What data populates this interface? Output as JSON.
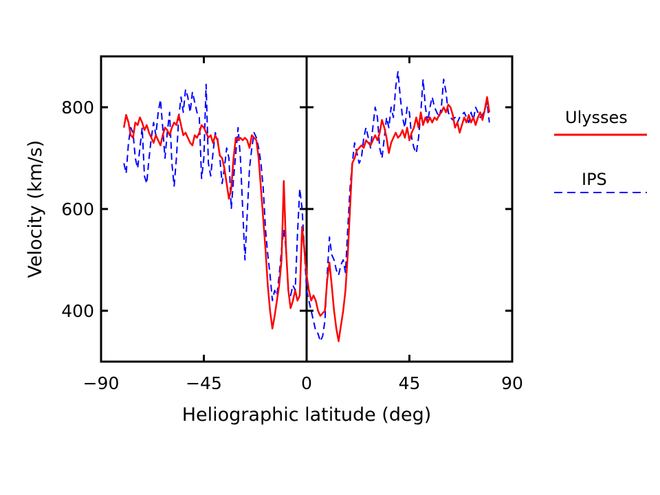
{
  "chart_data": {
    "type": "line",
    "xlabel": "Heliographic latitude (deg)",
    "ylabel": "Velocity (km/s)",
    "xlim": [
      -90,
      90
    ],
    "ylim": [
      300,
      900
    ],
    "x_ticks": [
      -90,
      -45,
      0,
      45,
      90
    ],
    "x_tick_labels": [
      "−90",
      "−45",
      "0",
      "45",
      "90"
    ],
    "y_ticks": [
      400,
      600,
      800
    ],
    "y_tick_labels": [
      "400",
      "600",
      "800"
    ],
    "grid": false,
    "legend_placement": "right, outside",
    "series": [
      {
        "name": "Ulysses",
        "color": "#ff0000",
        "style": "solid",
        "points": [
          [
            -80,
            760
          ],
          [
            -79,
            785
          ],
          [
            -78,
            770
          ],
          [
            -77,
            745
          ],
          [
            -76,
            740
          ],
          [
            -75,
            770
          ],
          [
            -74,
            765
          ],
          [
            -73,
            780
          ],
          [
            -72,
            770
          ],
          [
            -71,
            755
          ],
          [
            -70,
            765
          ],
          [
            -69,
            750
          ],
          [
            -68,
            740
          ],
          [
            -67,
            730
          ],
          [
            -66,
            745
          ],
          [
            -65,
            735
          ],
          [
            -64,
            725
          ],
          [
            -63,
            745
          ],
          [
            -62,
            760
          ],
          [
            -61,
            755
          ],
          [
            -60,
            745
          ],
          [
            -59,
            760
          ],
          [
            -58,
            770
          ],
          [
            -57,
            765
          ],
          [
            -56,
            785
          ],
          [
            -55,
            765
          ],
          [
            -54,
            745
          ],
          [
            -53,
            750
          ],
          [
            -52,
            740
          ],
          [
            -51,
            730
          ],
          [
            -50,
            725
          ],
          [
            -49,
            745
          ],
          [
            -48,
            740
          ],
          [
            -47,
            750
          ],
          [
            -46,
            765
          ],
          [
            -45,
            760
          ],
          [
            -44,
            750
          ],
          [
            -43,
            740
          ],
          [
            -42,
            745
          ],
          [
            -41,
            730
          ],
          [
            -40,
            745
          ],
          [
            -39,
            735
          ],
          [
            -38,
            705
          ],
          [
            -37,
            700
          ],
          [
            -36,
            680
          ],
          [
            -35,
            650
          ],
          [
            -34,
            620
          ],
          [
            -33,
            640
          ],
          [
            -32,
            700
          ],
          [
            -31,
            740
          ],
          [
            -30,
            735
          ],
          [
            -29,
            740
          ],
          [
            -28,
            735
          ],
          [
            -27,
            740
          ],
          [
            -26,
            735
          ],
          [
            -25,
            720
          ],
          [
            -24,
            745
          ],
          [
            -23,
            740
          ],
          [
            -22,
            735
          ],
          [
            -21,
            700
          ],
          [
            -20,
            640
          ],
          [
            -19,
            580
          ],
          [
            -18,
            520
          ],
          [
            -17,
            450
          ],
          [
            -16,
            400
          ],
          [
            -15,
            365
          ],
          [
            -14,
            390
          ],
          [
            -13,
            420
          ],
          [
            -12,
            450
          ],
          [
            -11,
            500
          ],
          [
            -10,
            655
          ],
          [
            -9,
            520
          ],
          [
            -8,
            440
          ],
          [
            -7,
            405
          ],
          [
            -6,
            420
          ],
          [
            -5,
            440
          ],
          [
            -4,
            420
          ],
          [
            -3,
            430
          ],
          [
            -2,
            565
          ],
          [
            -1,
            520
          ],
          [
            0,
            470
          ],
          [
            1,
            440
          ],
          [
            2,
            420
          ],
          [
            3,
            430
          ],
          [
            4,
            420
          ],
          [
            5,
            400
          ],
          [
            6,
            390
          ],
          [
            7,
            395
          ],
          [
            8,
            400
          ],
          [
            9,
            460
          ],
          [
            10,
            495
          ],
          [
            11,
            450
          ],
          [
            12,
            400
          ],
          [
            13,
            365
          ],
          [
            14,
            340
          ],
          [
            15,
            370
          ],
          [
            16,
            400
          ],
          [
            17,
            440
          ],
          [
            18,
            510
          ],
          [
            19,
            600
          ],
          [
            20,
            690
          ],
          [
            21,
            700
          ],
          [
            22,
            715
          ],
          [
            23,
            720
          ],
          [
            24,
            725
          ],
          [
            25,
            720
          ],
          [
            26,
            735
          ],
          [
            27,
            730
          ],
          [
            28,
            725
          ],
          [
            29,
            735
          ],
          [
            30,
            745
          ],
          [
            31,
            735
          ],
          [
            32,
            750
          ],
          [
            33,
            775
          ],
          [
            34,
            760
          ],
          [
            35,
            740
          ],
          [
            36,
            710
          ],
          [
            37,
            730
          ],
          [
            38,
            740
          ],
          [
            39,
            750
          ],
          [
            40,
            740
          ],
          [
            41,
            745
          ],
          [
            42,
            755
          ],
          [
            43,
            740
          ],
          [
            44,
            760
          ],
          [
            45,
            735
          ],
          [
            46,
            750
          ],
          [
            47,
            760
          ],
          [
            48,
            780
          ],
          [
            49,
            760
          ],
          [
            50,
            790
          ],
          [
            51,
            765
          ],
          [
            52,
            780
          ],
          [
            53,
            770
          ],
          [
            54,
            780
          ],
          [
            55,
            770
          ],
          [
            56,
            780
          ],
          [
            57,
            775
          ],
          [
            58,
            785
          ],
          [
            59,
            790
          ],
          [
            60,
            800
          ],
          [
            61,
            790
          ],
          [
            62,
            805
          ],
          [
            63,
            800
          ],
          [
            64,
            785
          ],
          [
            65,
            760
          ],
          [
            66,
            770
          ],
          [
            67,
            750
          ],
          [
            68,
            765
          ],
          [
            69,
            780
          ],
          [
            70,
            770
          ],
          [
            71,
            785
          ],
          [
            72,
            770
          ],
          [
            73,
            780
          ],
          [
            74,
            765
          ],
          [
            75,
            780
          ],
          [
            76,
            790
          ],
          [
            77,
            775
          ],
          [
            78,
            795
          ],
          [
            79,
            820
          ],
          [
            80,
            790
          ]
        ]
      },
      {
        "name": "IPS",
        "color": "#0000ff",
        "style": "dashed",
        "points": [
          [
            -80,
            690
          ],
          [
            -79,
            670
          ],
          [
            -78,
            730
          ],
          [
            -77,
            760
          ],
          [
            -76,
            750
          ],
          [
            -75,
            700
          ],
          [
            -74,
            680
          ],
          [
            -73,
            720
          ],
          [
            -72,
            760
          ],
          [
            -71,
            665
          ],
          [
            -70,
            650
          ],
          [
            -69,
            700
          ],
          [
            -68,
            740
          ],
          [
            -67,
            770
          ],
          [
            -66,
            745
          ],
          [
            -65,
            790
          ],
          [
            -64,
            815
          ],
          [
            -63,
            760
          ],
          [
            -62,
            700
          ],
          [
            -61,
            750
          ],
          [
            -60,
            790
          ],
          [
            -59,
            690
          ],
          [
            -58,
            645
          ],
          [
            -57,
            700
          ],
          [
            -56,
            780
          ],
          [
            -55,
            820
          ],
          [
            -54,
            790
          ],
          [
            -53,
            835
          ],
          [
            -52,
            820
          ],
          [
            -51,
            790
          ],
          [
            -50,
            830
          ],
          [
            -49,
            810
          ],
          [
            -48,
            790
          ],
          [
            -47,
            780
          ],
          [
            -46,
            660
          ],
          [
            -45,
            700
          ],
          [
            -44,
            845
          ],
          [
            -43,
            690
          ],
          [
            -42,
            665
          ],
          [
            -41,
            710
          ],
          [
            -40,
            750
          ],
          [
            -39,
            740
          ],
          [
            -38,
            700
          ],
          [
            -37,
            650
          ],
          [
            -36,
            680
          ],
          [
            -35,
            720
          ],
          [
            -34,
            700
          ],
          [
            -33,
            600
          ],
          [
            -32,
            660
          ],
          [
            -31,
            710
          ],
          [
            -30,
            760
          ],
          [
            -29,
            700
          ],
          [
            -28,
            600
          ],
          [
            -27,
            500
          ],
          [
            -26,
            590
          ],
          [
            -25,
            680
          ],
          [
            -24,
            720
          ],
          [
            -23,
            750
          ],
          [
            -22,
            740
          ],
          [
            -21,
            720
          ],
          [
            -20,
            690
          ],
          [
            -19,
            640
          ],
          [
            -18,
            560
          ],
          [
            -17,
            510
          ],
          [
            -16,
            470
          ],
          [
            -15,
            420
          ],
          [
            -14,
            440
          ],
          [
            -13,
            430
          ],
          [
            -12,
            470
          ],
          [
            -11,
            520
          ],
          [
            -10,
            560
          ],
          [
            -9,
            520
          ],
          [
            -8,
            440
          ],
          [
            -7,
            430
          ],
          [
            -6,
            450
          ],
          [
            -5,
            440
          ],
          [
            -4,
            550
          ],
          [
            -3,
            640
          ],
          [
            -2,
            600
          ],
          [
            -1,
            520
          ],
          [
            0,
            440
          ],
          [
            1,
            420
          ],
          [
            2,
            400
          ],
          [
            3,
            380
          ],
          [
            4,
            360
          ],
          [
            5,
            355
          ],
          [
            6,
            340
          ],
          [
            7,
            350
          ],
          [
            8,
            380
          ],
          [
            9,
            470
          ],
          [
            10,
            545
          ],
          [
            11,
            510
          ],
          [
            12,
            500
          ],
          [
            13,
            480
          ],
          [
            14,
            470
          ],
          [
            15,
            490
          ],
          [
            16,
            500
          ],
          [
            17,
            475
          ],
          [
            18,
            560
          ],
          [
            19,
            640
          ],
          [
            20,
            690
          ],
          [
            21,
            730
          ],
          [
            22,
            710
          ],
          [
            23,
            690
          ],
          [
            24,
            700
          ],
          [
            25,
            740
          ],
          [
            26,
            760
          ],
          [
            27,
            740
          ],
          [
            28,
            720
          ],
          [
            29,
            760
          ],
          [
            30,
            800
          ],
          [
            31,
            780
          ],
          [
            32,
            720
          ],
          [
            33,
            700
          ],
          [
            34,
            740
          ],
          [
            35,
            780
          ],
          [
            36,
            760
          ],
          [
            37,
            800
          ],
          [
            38,
            780
          ],
          [
            39,
            840
          ],
          [
            40,
            870
          ],
          [
            41,
            820
          ],
          [
            42,
            780
          ],
          [
            43,
            760
          ],
          [
            44,
            800
          ],
          [
            45,
            790
          ],
          [
            46,
            740
          ],
          [
            47,
            720
          ],
          [
            48,
            710
          ],
          [
            49,
            740
          ],
          [
            50,
            790
          ],
          [
            51,
            855
          ],
          [
            52,
            800
          ],
          [
            53,
            770
          ],
          [
            54,
            800
          ],
          [
            55,
            820
          ],
          [
            56,
            800
          ],
          [
            57,
            790
          ],
          [
            58,
            780
          ],
          [
            59,
            800
          ],
          [
            60,
            855
          ],
          [
            61,
            830
          ],
          [
            62,
            790
          ],
          [
            63,
            780
          ],
          [
            64,
            775
          ],
          [
            65,
            780
          ],
          [
            66,
            770
          ],
          [
            67,
            780
          ],
          [
            68,
            785
          ],
          [
            69,
            790
          ],
          [
            70,
            780
          ],
          [
            71,
            770
          ],
          [
            72,
            790
          ],
          [
            73,
            775
          ],
          [
            74,
            800
          ],
          [
            75,
            790
          ],
          [
            76,
            780
          ],
          [
            77,
            785
          ],
          [
            78,
            795
          ],
          [
            79,
            810
          ],
          [
            80,
            770
          ]
        ]
      }
    ]
  }
}
